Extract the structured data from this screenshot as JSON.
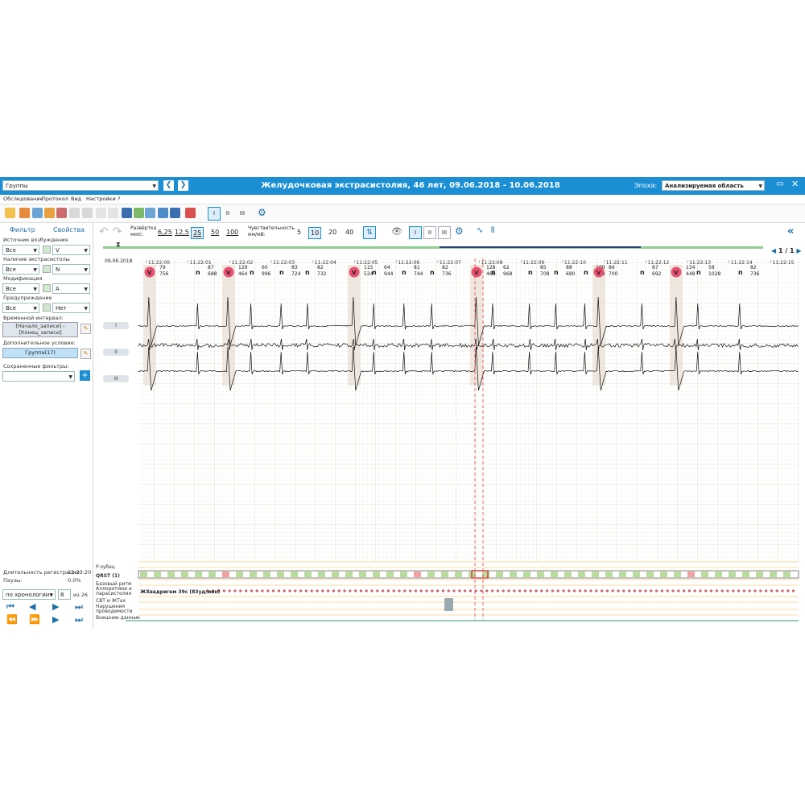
{
  "titlebar": {
    "group_select": "Группы",
    "title": "Желудочковая экстрасистолия, 46 лет, 09.06.2018 - 10.06.2018",
    "epoch_label": "Эпоха:",
    "epoch_value": "Анализируемая область"
  },
  "menu": [
    "Обследование",
    "Протокол",
    "Вид",
    "Настройки",
    "?"
  ],
  "toolbar": {
    "lead_buttons": [
      "I",
      "II",
      "III"
    ]
  },
  "left_panel": {
    "tabs": [
      "Фильтр",
      "Свойства"
    ],
    "source_label": "Источник возбуждения",
    "source_all": "Все",
    "source_value": "V",
    "extra_label": "Наличие экстрасистолы",
    "extra_all": "Все",
    "extra_value": "N",
    "mod_label": "Модификация",
    "mod_all": "Все",
    "mod_value": "A",
    "warn_label": "Предупреждение",
    "warn_all": "Все",
    "warn_value": "Нет",
    "interval_label": "Временной интервал:",
    "interval_value": "[Начало_записи] - [Конец_записи]",
    "extra_cond_label": "Дополнительное условие:",
    "group_button": "Группа(17)",
    "saved_filters_label": "Сохраненные фильтры:",
    "duration_label": "Длительность регистрации:",
    "duration_value": "23:23:20",
    "pauses_label": "Паузы:",
    "pauses_value": "0,0%",
    "sort_value": "по хронологии",
    "page_value": "8",
    "page_total": "из 26"
  },
  "controls": {
    "sweep_label": "Развёртка мм/с:",
    "sweep_values": [
      "6,25",
      "12,5",
      "25",
      "50",
      "100"
    ],
    "sens_label": "Чувствительность мм/мВ:",
    "sens_values": [
      "5",
      "10",
      "20",
      "40"
    ],
    "leads": [
      "I",
      "II",
      "III"
    ],
    "page_indicator": "1 / 1"
  },
  "chart_header": {
    "date": "09.06.2018",
    "times": [
      "11:22:00",
      "11:22:01",
      "11:22:02",
      "11:22:03",
      "11:22:04",
      "11:22:05",
      "11:22:06",
      "11:22:07",
      "11:22:08",
      "11:22:09",
      "11:22:10",
      "11:22:11",
      "11:22:12",
      "11:22:13",
      "11:22:14",
      "11:22:15"
    ]
  },
  "beats": [
    {
      "label": "V",
      "top": "79",
      "bot": "756"
    },
    {
      "label": "n",
      "top": "87",
      "bot": "688"
    },
    {
      "label": "V",
      "top": "129",
      "bot": "464"
    },
    {
      "label": "n",
      "top": "60",
      "bot": "996"
    },
    {
      "label": "n",
      "top": "83",
      "bot": "724"
    },
    {
      "label": "n",
      "top": "82",
      "bot": "732"
    },
    {
      "label": "V",
      "top": "115",
      "bot": "524"
    },
    {
      "label": "n",
      "top": "64",
      "bot": "944"
    },
    {
      "label": "n",
      "top": "81",
      "bot": "744"
    },
    {
      "label": "n",
      "top": "82",
      "bot": "736"
    },
    {
      "label": "V",
      "top": "128",
      "bot": "468"
    },
    {
      "label": "n",
      "top": "62",
      "bot": "968"
    },
    {
      "label": "n",
      "top": "85",
      "bot": "708"
    },
    {
      "label": "n",
      "top": "88",
      "bot": "680"
    },
    {
      "label": "n",
      "top": "100",
      "bot": "600"
    },
    {
      "label": "V",
      "top": "86",
      "bot": "700"
    },
    {
      "label": "n",
      "top": "87",
      "bot": "692"
    },
    {
      "label": "V",
      "top": "134",
      "bot": "448"
    },
    {
      "label": "n",
      "top": "58",
      "bot": "1028"
    },
    {
      "label": "n",
      "top": "82",
      "bot": "736"
    }
  ],
  "lead_labels": [
    "I",
    "II",
    "III"
  ],
  "timeline": {
    "rows": [
      "P-зубец",
      "QRST (1)",
      "Базовый ритм",
      "Аллоритмии и парасистолия",
      "СВТ и ЖТах",
      "Нарушения проводимости",
      "Внешние данные"
    ],
    "rhythm_text": "ЖХвадригем 39с (83уд/мин)"
  }
}
